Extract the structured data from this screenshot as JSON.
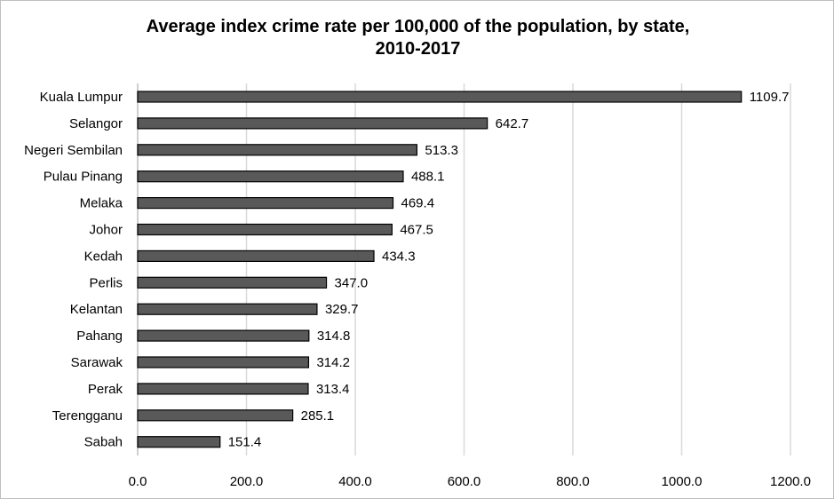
{
  "chart_data": {
    "type": "bar",
    "orientation": "horizontal",
    "title_lines": [
      "Average index crime rate per 100,000 of the population, by state,",
      "2010-2017"
    ],
    "categories": [
      "Kuala Lumpur",
      "Selangor",
      "Negeri Sembilan",
      "Pulau Pinang",
      "Melaka",
      "Johor",
      "Kedah",
      "Perlis",
      "Kelantan",
      "Pahang",
      "Sarawak",
      "Perak",
      "Terengganu",
      "Sabah"
    ],
    "values": [
      1109.7,
      642.7,
      513.3,
      488.1,
      469.4,
      467.5,
      434.3,
      347.0,
      329.7,
      314.8,
      314.2,
      313.4,
      285.1,
      151.4
    ],
    "data_labels": [
      "1109.7",
      "642.7",
      "513.3",
      "488.1",
      "469.4",
      "467.5",
      "434.3",
      "347.0",
      "329.7",
      "314.8",
      "314.2",
      "313.4",
      "285.1",
      "151.4"
    ],
    "x_ticks": [
      0,
      200,
      400,
      600,
      800,
      1000,
      1200
    ],
    "x_tick_labels": [
      "0.0",
      "200.0",
      "400.0",
      "600.0",
      "800.0",
      "1000.0",
      "1200.0"
    ],
    "xlim": [
      0,
      1200
    ],
    "xlabel": "",
    "ylabel": "",
    "grid": "vertical",
    "legend": "none",
    "colors": {
      "bar_fill": "#595959",
      "bar_stroke": "#000000",
      "grid": "#d9d9d9",
      "axis": "#bfbfbf"
    }
  }
}
